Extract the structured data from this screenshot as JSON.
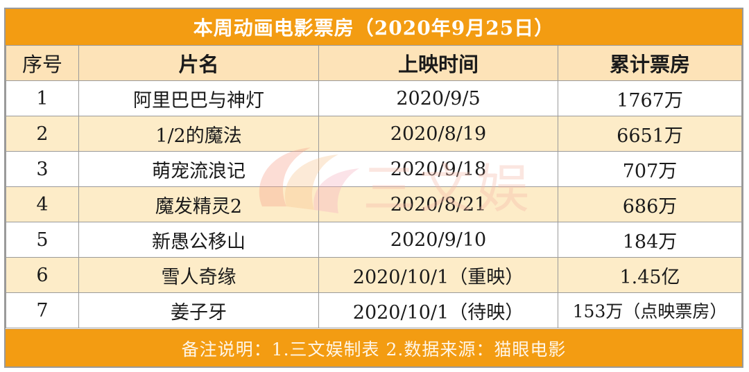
{
  "title": "本周动画电影票房（2020年9月25日）",
  "headers": {
    "no": "序号",
    "name": "片名",
    "release": "上映时间",
    "box_office": "累计票房"
  },
  "rows": [
    {
      "no": "1",
      "name": "阿里巴巴与神灯",
      "release": "2020/9/5",
      "box_office": "1767万"
    },
    {
      "no": "2",
      "name": "1/2的魔法",
      "release": "2020/8/19",
      "box_office": "6651万"
    },
    {
      "no": "3",
      "name": "萌宠流浪记",
      "release": "2020/9/18",
      "box_office": "707万"
    },
    {
      "no": "4",
      "name": "魔发精灵2",
      "release": "2020/8/21",
      "box_office": "686万"
    },
    {
      "no": "5",
      "name": "新愚公移山",
      "release": "2020/9/10",
      "box_office": "184万"
    },
    {
      "no": "6",
      "name": "雪人奇缘",
      "release": "2020/10/1（重映）",
      "box_office": "1.45亿"
    },
    {
      "no": "7",
      "name": "姜子牙",
      "release": "2020/10/1（待映）",
      "box_office": "153万（点映票房）"
    }
  ],
  "footer": "备注说明：1.三文娱制表 2.数据来源：猫眼电影",
  "watermark": "三文娱",
  "colors": {
    "header_orange": "#f39c12",
    "row_tint": "#fdecc8",
    "header_tint": "#fde3b8",
    "border": "#9a9a9a"
  }
}
